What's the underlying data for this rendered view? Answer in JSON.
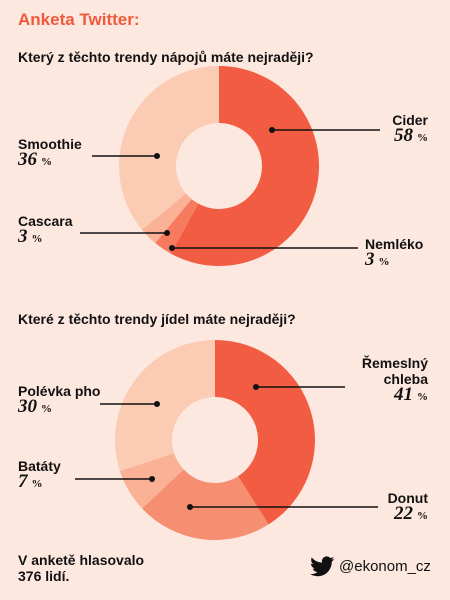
{
  "header": {
    "title": "Anketa Twitter:"
  },
  "chart_data": [
    {
      "type": "donut",
      "title": "Který z těchto trendy nápojů máte nejraději?",
      "unit": "%",
      "categories": [
        "Cider",
        "Nemléko",
        "Cascara",
        "Smoothie"
      ],
      "values": [
        58,
        3,
        3,
        36
      ],
      "colors": [
        "#f25c42",
        "#f57a5e",
        "#fab196",
        "#fccbb4"
      ]
    },
    {
      "type": "donut",
      "title": "Které z těchto trendy jídel máte nejraději?",
      "unit": "%",
      "categories": [
        "Řemeslný chleba",
        "Donut",
        "Batáty",
        "Polévka pho"
      ],
      "values": [
        41,
        22,
        7,
        30
      ],
      "colors": [
        "#f25c42",
        "#f68e72",
        "#fab196",
        "#fccbb4"
      ]
    }
  ],
  "footer": {
    "note": "V anketě hlasovalo 376 lidí.",
    "handle": "@ekonom_cz"
  }
}
